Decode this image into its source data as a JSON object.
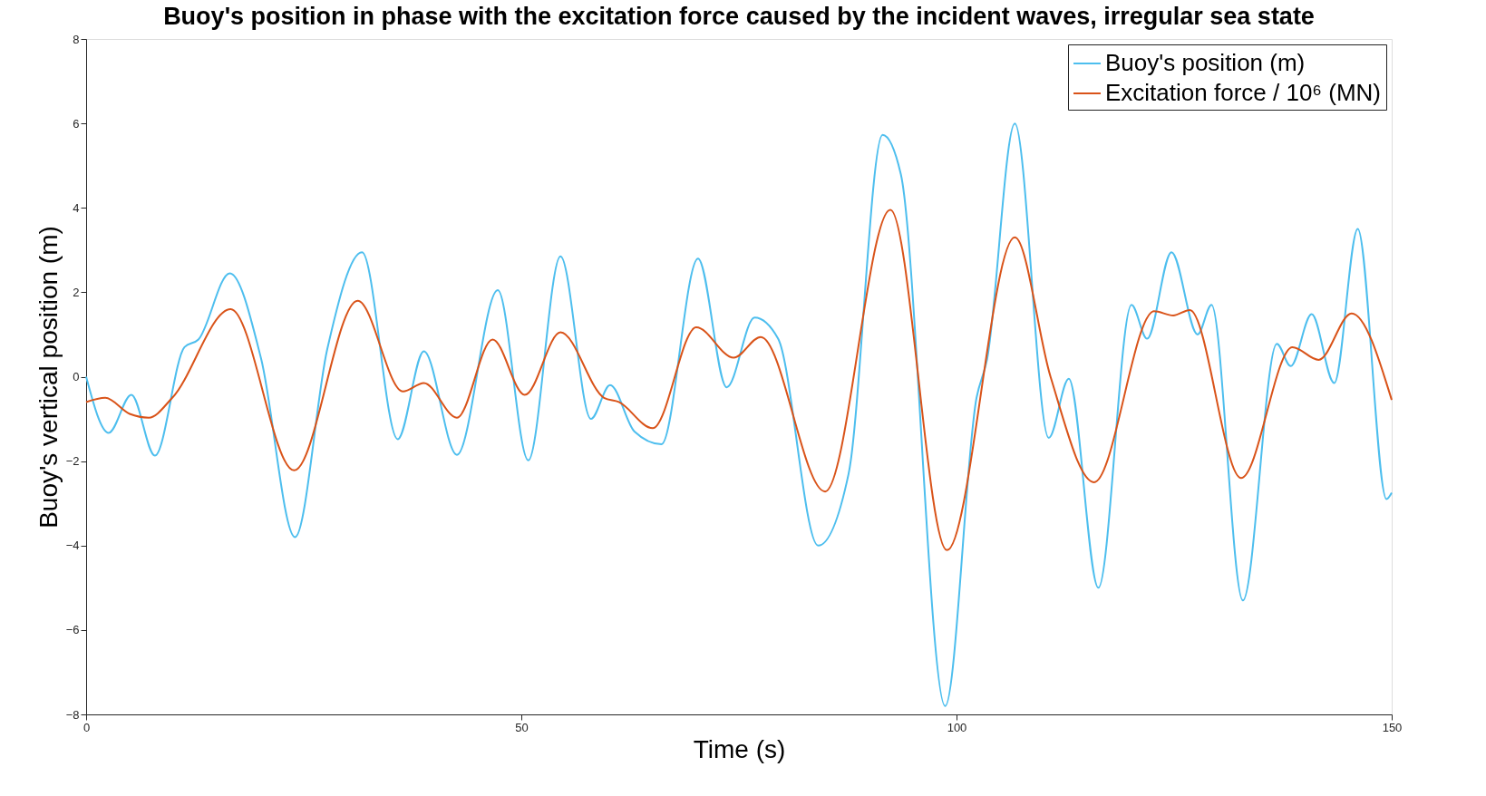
{
  "chart_data": {
    "type": "line",
    "title": "Buoy's position in phase with the excitation force caused by the incident waves, irregular sea state",
    "xlabel": "Time (s)",
    "ylabel": "Buoy's vertical position (m)",
    "xlim": [
      0,
      150
    ],
    "xticks": [
      0,
      50,
      100,
      150
    ],
    "ylim": [
      -8,
      8
    ],
    "yticks": [
      -8,
      -6,
      -4,
      -2,
      0,
      2,
      4,
      6,
      8
    ],
    "grid": false,
    "legend": "top right",
    "marker": "none",
    "line_style": "solid",
    "series": [
      {
        "name": "Buoy's position (m)",
        "color": "#4dbeee",
        "x": [
          0,
          2.6,
          5.2,
          7.9,
          11.3,
          12.9,
          16.5,
          20.1,
          24.0,
          27.7,
          31.7,
          35.8,
          38.8,
          42.6,
          47.3,
          50.8,
          54.5,
          58.0,
          60.2,
          63.0,
          66.1,
          70.3,
          73.6,
          76.8,
          79.5,
          84.1,
          87.6,
          91.5,
          93.6,
          98.7,
          102.3,
          103.5,
          106.7,
          110.6,
          112.9,
          116.3,
          120.1,
          121.9,
          124.7,
          127.7,
          129.3,
          132.9,
          136.8,
          138.4,
          140.8,
          143.4,
          146.1,
          149.4,
          150
        ],
        "values": [
          0,
          -1.33,
          -0.43,
          -1.87,
          0.7,
          0.88,
          2.45,
          0.43,
          -3.8,
          0.65,
          2.95,
          -1.48,
          0.6,
          -1.85,
          2.05,
          -1.98,
          2.85,
          -1.0,
          -0.2,
          -1.3,
          -1.6,
          2.8,
          -0.25,
          1.4,
          0.9,
          -4.0,
          -2.3,
          5.73,
          4.8,
          -7.8,
          -0.5,
          0.4,
          6.0,
          -1.45,
          -0.05,
          -5.0,
          1.7,
          0.9,
          2.95,
          1.0,
          1.7,
          -5.3,
          0.78,
          0.25,
          1.48,
          -0.15,
          3.5,
          -2.9,
          -2.75
        ]
      },
      {
        "name": "Excitation force / 10⁶ (MN)",
        "color": "#d95319",
        "x": [
          0,
          2.2,
          5.0,
          7.2,
          9.9,
          16.6,
          23.9,
          31.2,
          36.4,
          38.8,
          42.6,
          46.7,
          50.4,
          54.5,
          59.5,
          61.2,
          65.1,
          70.1,
          74.4,
          77.5,
          84.9,
          92.4,
          98.9,
          106.7,
          110.8,
          115.8,
          122.7,
          124.9,
          126.8,
          132.7,
          138.6,
          141.6,
          145.4,
          150
        ],
        "values": [
          -0.6,
          -0.5,
          -0.88,
          -0.97,
          -0.5,
          1.6,
          -2.22,
          1.8,
          -0.35,
          -0.15,
          -0.97,
          0.88,
          -0.43,
          1.05,
          -0.5,
          -0.6,
          -1.22,
          1.17,
          0.45,
          0.94,
          -2.72,
          3.95,
          -4.11,
          3.3,
          0,
          -2.5,
          1.55,
          1.45,
          1.58,
          -2.4,
          0.7,
          0.4,
          1.5,
          -0.55
        ]
      }
    ]
  }
}
